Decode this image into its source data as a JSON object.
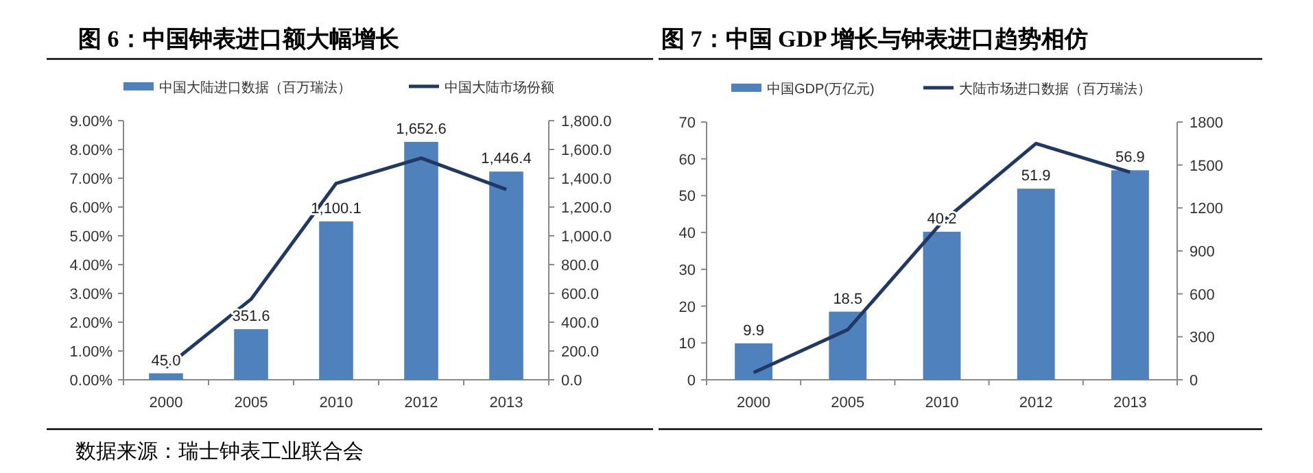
{
  "chart_data": [
    {
      "type": "bar",
      "title": "图 6：中国钟表进口额大幅增长",
      "categories": [
        "2000",
        "2005",
        "2010",
        "2012",
        "2013"
      ],
      "series": [
        {
          "name": "中国大陆进口数据（百万瑞法）",
          "axis": "y2",
          "color": "#4f81bd",
          "values": [
            45,
            351.6,
            1100.1,
            1652.6,
            1446.4
          ],
          "value_labels": [
            "45.0",
            "351.6",
            "1,100.1",
            "1,652.6",
            "1,446.4"
          ]
        },
        {
          "name": "中国大陆市场份额",
          "type": "line",
          "axis": "y",
          "color": "#1f3864",
          "values": [
            0.43,
            2.8,
            6.82,
            7.7,
            6.61
          ]
        }
      ],
      "ylim": [
        0,
        9
      ],
      "yticks": [
        {
          "value": 0,
          "label": "0.00%"
        },
        {
          "value": 1,
          "label": "1.00%"
        },
        {
          "value": 2,
          "label": "2.00%"
        },
        {
          "value": 3,
          "label": "3.00%"
        },
        {
          "value": 4,
          "label": "4.00%"
        },
        {
          "value": 5,
          "label": "5.00%"
        },
        {
          "value": 6,
          "label": "6.00%"
        },
        {
          "value": 7,
          "label": "7.00%"
        },
        {
          "value": 8,
          "label": "8.00%"
        },
        {
          "value": 9,
          "label": "9.00%"
        }
      ],
      "y2lim": [
        0,
        1800
      ],
      "y2ticks": [
        {
          "value": 0,
          "label": "0.0"
        },
        {
          "value": 200,
          "label": "200.0"
        },
        {
          "value": 400,
          "label": "400.0"
        },
        {
          "value": 600,
          "label": "600.0"
        },
        {
          "value": 800,
          "label": "800.0"
        },
        {
          "value": 1000,
          "label": "1,000.0"
        },
        {
          "value": 1200,
          "label": "1,200.0"
        },
        {
          "value": 1400,
          "label": "1,400.0"
        },
        {
          "value": 1600,
          "label": "1,600.0"
        },
        {
          "value": 1800,
          "label": "1,800.0"
        }
      ],
      "legend": "top",
      "grid": false,
      "marker": "none",
      "annotations": [
        "数据来源：瑞士钟表工业联合会"
      ]
    },
    {
      "type": "bar",
      "title": "图 7：中国 GDP 增长与钟表进口趋势相仿",
      "categories": [
        "2000",
        "2005",
        "2010",
        "2012",
        "2013"
      ],
      "series": [
        {
          "name": "中国GDP(万亿元)",
          "axis": "y",
          "color": "#4f81bd",
          "values": [
            9.9,
            18.5,
            40.2,
            51.9,
            56.9
          ],
          "value_labels": [
            "9.9",
            "18.5",
            "40.2",
            "51.9",
            "56.9"
          ]
        },
        {
          "name": "大陆市场进口数据（百万瑞法）",
          "type": "line",
          "axis": "y2",
          "color": "#1f3864",
          "values": [
            50,
            350,
            1100,
            1650,
            1450
          ]
        }
      ],
      "ylim": [
        0,
        70
      ],
      "yticks": [
        0,
        10,
        20,
        30,
        40,
        50,
        60,
        70
      ],
      "y2lim": [
        0,
        1800
      ],
      "y2ticks": [
        0,
        300,
        600,
        900,
        1200,
        1500,
        1800
      ],
      "legend": "top",
      "grid": false,
      "marker": "none"
    }
  ]
}
